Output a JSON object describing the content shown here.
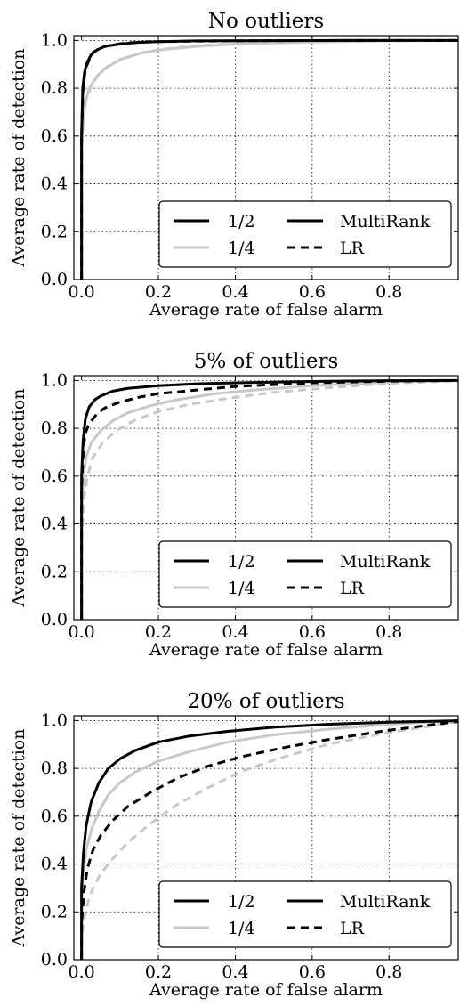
{
  "chart_data": [
    {
      "type": "line",
      "title": "No outliers",
      "xlabel": "Average rate of false alarm",
      "ylabel": "Average rate of detection",
      "xlim": [
        -0.02,
        0.98
      ],
      "ylim": [
        0.0,
        1.02
      ],
      "xticks": [
        0.0,
        0.2,
        0.4,
        0.6,
        0.8
      ],
      "yticks": [
        0.0,
        0.2,
        0.4,
        0.6,
        0.8,
        1.0
      ],
      "grid": true,
      "legend_placement": "lower-right",
      "legend": {
        "color_entries": [
          {
            "label": "1/2",
            "color": "#000000"
          },
          {
            "label": "1/4",
            "color": "#c8c8c8"
          }
        ],
        "style_entries": [
          {
            "label": "MultiRank",
            "dash": "solid"
          },
          {
            "label": "LR",
            "dash": "dashed"
          }
        ]
      },
      "series": [
        {
          "group": "1/2",
          "method": "MultiRank",
          "color": "#000000",
          "dash": "solid",
          "x": [
            0.0,
            0.0,
            0.003,
            0.008,
            0.015,
            0.025,
            0.04,
            0.06,
            0.1,
            0.15,
            0.2,
            0.3,
            0.5,
            0.7,
            1.0
          ],
          "y": [
            0.0,
            0.6,
            0.8,
            0.87,
            0.91,
            0.94,
            0.96,
            0.975,
            0.985,
            0.992,
            0.995,
            0.998,
            0.999,
            1.0,
            1.0
          ]
        },
        {
          "group": "1/2",
          "method": "LR",
          "color": "#000000",
          "dash": "dashed",
          "x": [
            0.0,
            0.0,
            0.004,
            0.01,
            0.02,
            0.03,
            0.05,
            0.08,
            0.12,
            0.2,
            0.3,
            0.5,
            0.7,
            1.0
          ],
          "y": [
            0.0,
            0.6,
            0.8,
            0.88,
            0.92,
            0.95,
            0.97,
            0.982,
            0.99,
            0.995,
            0.997,
            0.999,
            1.0,
            1.0
          ]
        },
        {
          "group": "1/4",
          "method": "MultiRank",
          "color": "#c8c8c8",
          "dash": "solid",
          "x": [
            0.0,
            0.0,
            0.005,
            0.01,
            0.02,
            0.04,
            0.06,
            0.1,
            0.15,
            0.2,
            0.3,
            0.4,
            0.6,
            0.8,
            1.0
          ],
          "y": [
            0.0,
            0.55,
            0.68,
            0.74,
            0.8,
            0.85,
            0.88,
            0.92,
            0.945,
            0.96,
            0.975,
            0.985,
            0.993,
            0.998,
            1.0
          ]
        },
        {
          "group": "1/4",
          "method": "LR",
          "color": "#c8c8c8",
          "dash": "dashed",
          "x": [
            0.0,
            0.0,
            0.005,
            0.012,
            0.025,
            0.045,
            0.07,
            0.11,
            0.16,
            0.22,
            0.3,
            0.4,
            0.6,
            0.8,
            1.0
          ],
          "y": [
            0.0,
            0.55,
            0.68,
            0.75,
            0.81,
            0.86,
            0.895,
            0.925,
            0.95,
            0.965,
            0.978,
            0.987,
            0.995,
            0.999,
            1.0
          ]
        }
      ]
    },
    {
      "type": "line",
      "title": "5% of outliers",
      "xlabel": "Average rate of false alarm",
      "ylabel": "Average rate of detection",
      "xlim": [
        -0.02,
        0.98
      ],
      "ylim": [
        0.0,
        1.02
      ],
      "xticks": [
        0.0,
        0.2,
        0.4,
        0.6,
        0.8
      ],
      "yticks": [
        0.0,
        0.2,
        0.4,
        0.6,
        0.8,
        1.0
      ],
      "grid": true,
      "legend_placement": "lower-right",
      "legend": {
        "color_entries": [
          {
            "label": "1/2",
            "color": "#000000"
          },
          {
            "label": "1/4",
            "color": "#c8c8c8"
          }
        ],
        "style_entries": [
          {
            "label": "MultiRank",
            "dash": "solid"
          },
          {
            "label": "LR",
            "dash": "dashed"
          }
        ]
      },
      "series": [
        {
          "group": "1/2",
          "method": "MultiRank",
          "color": "#000000",
          "dash": "solid",
          "x": [
            0.0,
            0.0,
            0.004,
            0.01,
            0.02,
            0.035,
            0.05,
            0.08,
            0.12,
            0.2,
            0.3,
            0.4,
            0.6,
            0.8,
            1.0
          ],
          "y": [
            0.0,
            0.6,
            0.75,
            0.84,
            0.89,
            0.92,
            0.935,
            0.955,
            0.967,
            0.978,
            0.986,
            0.99,
            0.996,
            0.999,
            1.0
          ]
        },
        {
          "group": "1/2",
          "method": "LR",
          "color": "#000000",
          "dash": "dashed",
          "x": [
            0.0,
            0.0,
            0.005,
            0.01,
            0.02,
            0.04,
            0.06,
            0.1,
            0.15,
            0.2,
            0.3,
            0.4,
            0.6,
            0.8,
            1.0
          ],
          "y": [
            0.0,
            0.55,
            0.72,
            0.78,
            0.82,
            0.86,
            0.885,
            0.91,
            0.93,
            0.945,
            0.96,
            0.975,
            0.99,
            0.997,
            1.0
          ]
        },
        {
          "group": "1/4",
          "method": "MultiRank",
          "color": "#c8c8c8",
          "dash": "solid",
          "x": [
            0.0,
            0.0,
            0.005,
            0.012,
            0.025,
            0.05,
            0.08,
            0.12,
            0.18,
            0.25,
            0.35,
            0.45,
            0.6,
            0.8,
            1.0
          ],
          "y": [
            0.0,
            0.45,
            0.6,
            0.68,
            0.74,
            0.79,
            0.83,
            0.865,
            0.895,
            0.92,
            0.945,
            0.96,
            0.978,
            0.993,
            1.0
          ]
        },
        {
          "group": "1/4",
          "method": "LR",
          "color": "#c8c8c8",
          "dash": "dashed",
          "x": [
            0.0,
            0.0,
            0.006,
            0.015,
            0.03,
            0.055,
            0.09,
            0.14,
            0.2,
            0.28,
            0.38,
            0.5,
            0.65,
            0.8,
            1.0
          ],
          "y": [
            0.0,
            0.35,
            0.5,
            0.6,
            0.68,
            0.74,
            0.79,
            0.835,
            0.87,
            0.9,
            0.925,
            0.95,
            0.97,
            0.988,
            1.0
          ]
        }
      ]
    },
    {
      "type": "line",
      "title": "20% of outliers",
      "xlabel": "Average rate of false alarm",
      "ylabel": "Average rate of detection",
      "xlim": [
        -0.02,
        0.98
      ],
      "ylim": [
        0.0,
        1.02
      ],
      "xticks": [
        0.0,
        0.2,
        0.4,
        0.6,
        0.8
      ],
      "yticks": [
        0.0,
        0.2,
        0.4,
        0.6,
        0.8,
        1.0
      ],
      "grid": true,
      "legend_placement": "lower-right",
      "legend": {
        "color_entries": [
          {
            "label": "1/2",
            "color": "#000000"
          },
          {
            "label": "1/4",
            "color": "#c8c8c8"
          }
        ],
        "style_entries": [
          {
            "label": "MultiRank",
            "dash": "solid"
          },
          {
            "label": "LR",
            "dash": "dashed"
          }
        ]
      },
      "series": [
        {
          "group": "1/2",
          "method": "MultiRank",
          "color": "#000000",
          "dash": "solid",
          "x": [
            0.0,
            0.0,
            0.005,
            0.012,
            0.025,
            0.045,
            0.07,
            0.1,
            0.14,
            0.2,
            0.28,
            0.38,
            0.5,
            0.65,
            0.8,
            1.0
          ],
          "y": [
            0.0,
            0.3,
            0.45,
            0.56,
            0.66,
            0.74,
            0.8,
            0.84,
            0.875,
            0.91,
            0.935,
            0.955,
            0.972,
            0.985,
            0.993,
            1.0
          ]
        },
        {
          "group": "1/2",
          "method": "LR",
          "color": "#000000",
          "dash": "dashed",
          "x": [
            0.0,
            0.0,
            0.006,
            0.015,
            0.03,
            0.05,
            0.08,
            0.12,
            0.18,
            0.25,
            0.33,
            0.42,
            0.52,
            0.64,
            0.78,
            0.9,
            1.0
          ],
          "y": [
            0.0,
            0.15,
            0.28,
            0.38,
            0.46,
            0.52,
            0.58,
            0.64,
            0.7,
            0.76,
            0.81,
            0.85,
            0.885,
            0.92,
            0.955,
            0.98,
            1.0
          ]
        },
        {
          "group": "1/4",
          "method": "MultiRank",
          "color": "#c8c8c8",
          "dash": "solid",
          "x": [
            0.0,
            0.0,
            0.005,
            0.012,
            0.025,
            0.045,
            0.07,
            0.1,
            0.14,
            0.2,
            0.28,
            0.38,
            0.5,
            0.65,
            0.8,
            1.0
          ],
          "y": [
            0.0,
            0.25,
            0.38,
            0.46,
            0.54,
            0.62,
            0.69,
            0.74,
            0.785,
            0.83,
            0.87,
            0.91,
            0.94,
            0.965,
            0.985,
            1.0
          ]
        },
        {
          "group": "1/4",
          "method": "LR",
          "color": "#c8c8c8",
          "dash": "dashed",
          "x": [
            0.0,
            0.0,
            0.008,
            0.018,
            0.03,
            0.05,
            0.08,
            0.12,
            0.18,
            0.25,
            0.33,
            0.42,
            0.52,
            0.64,
            0.78,
            0.9,
            1.0
          ],
          "y": [
            0.0,
            0.1,
            0.18,
            0.25,
            0.3,
            0.36,
            0.42,
            0.49,
            0.57,
            0.65,
            0.72,
            0.79,
            0.845,
            0.9,
            0.945,
            0.975,
            1.0
          ]
        }
      ]
    }
  ]
}
